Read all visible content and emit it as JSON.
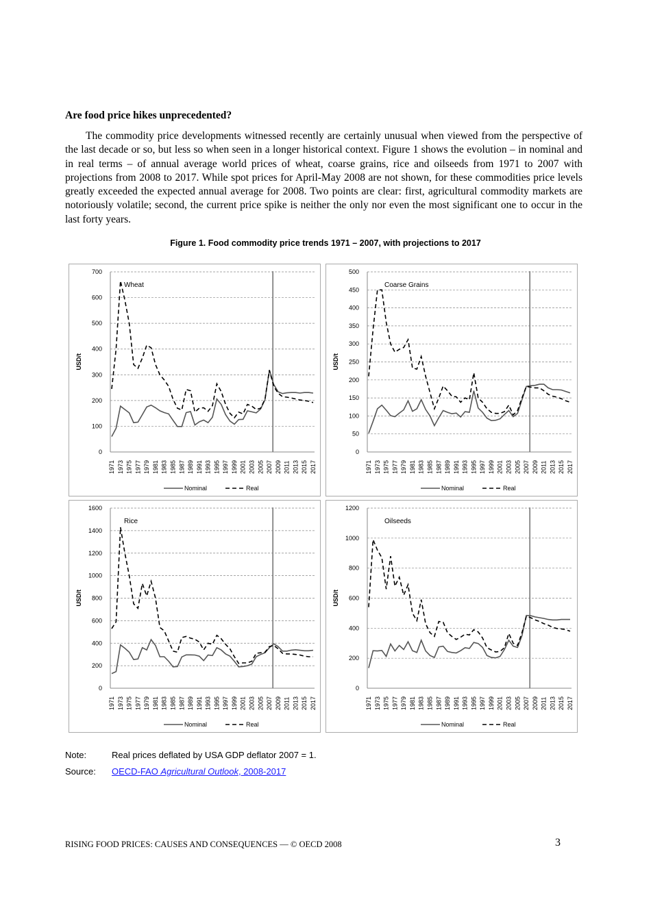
{
  "heading": "Are food price hikes unprecedented?",
  "paragraph": "The commodity price developments witnessed recently are certainly unusual when viewed from the perspective of the last decade or so, but less so when seen in a longer historical context. Figure 1 shows the evolution – in nominal and in real terms – of annual average world prices of wheat, coarse grains, rice and oilseeds from 1971 to 2007 with projections from 2008 to 2017. While spot prices for April-May 2008 are not shown, for these commodities price levels greatly exceeded the expected annual average for 2008. Two points are clear: first, agricultural commodity markets are notoriously volatile; second, the current price spike is neither the only nor even the most significant one to occur in the last forty years.",
  "figure_title": "Figure 1.  Food commodity price trends 1971 – 2007, with projections to 2017",
  "note": {
    "label": "Note:",
    "text": "Real prices deflated by USA GDP deflator 2007 = 1."
  },
  "source": {
    "label": "Source:",
    "link_prefix": "OECD-FAO ",
    "link_italic": "Agricultural Outlook",
    "link_suffix": ", 2008-2017"
  },
  "footer": "RISING FOOD PRICES: CAUSES AND CONSEQUENCES — © OECD 2008",
  "page_number": "3",
  "chart_data": [
    {
      "type": "line",
      "title": "Wheat",
      "ylabel": "USD/t",
      "ylim": [
        0,
        700
      ],
      "yticks": [
        0,
        100,
        200,
        300,
        400,
        500,
        600,
        700
      ],
      "x_start": 1971,
      "x_end": 2017,
      "projection_start": 2008,
      "grid": "horizontal dashed",
      "legend": "bottom",
      "series": [
        {
          "name": "Nominal",
          "style": "solid",
          "values": [
            60,
            92,
            178,
            165,
            152,
            114,
            116,
            145,
            175,
            182,
            172,
            160,
            153,
            148,
            123,
            99,
            99,
            153,
            157,
            105,
            117,
            124,
            114,
            135,
            206,
            185,
            145,
            120,
            108,
            126,
            127,
            160,
            156,
            152,
            167,
            203,
            318,
            262,
            234,
            227,
            230,
            231,
            231,
            229,
            231,
            231,
            229
          ]
        },
        {
          "name": "Real",
          "style": "dashed",
          "values": [
            245,
            400,
            665,
            590,
            500,
            340,
            325,
            365,
            415,
            405,
            340,
            300,
            280,
            255,
            205,
            170,
            163,
            243,
            238,
            155,
            170,
            172,
            158,
            180,
            265,
            235,
            185,
            150,
            133,
            155,
            148,
            185,
            178,
            165,
            170,
            205,
            318,
            255,
            228,
            215,
            213,
            210,
            206,
            202,
            200,
            197,
            192
          ]
        }
      ]
    },
    {
      "type": "line",
      "title": "Coarse Grains",
      "ylabel": "USD/t",
      "ylim": [
        0,
        500
      ],
      "yticks": [
        0,
        50,
        100,
        150,
        200,
        250,
        300,
        350,
        400,
        450,
        500
      ],
      "x_start": 1971,
      "x_end": 2017,
      "projection_start": 2008,
      "grid": "horizontal dashed",
      "legend": "bottom",
      "series": [
        {
          "name": "Nominal",
          "style": "solid",
          "values": [
            52,
            85,
            120,
            130,
            116,
            101,
            98,
            108,
            117,
            142,
            113,
            120,
            145,
            118,
            100,
            73,
            95,
            115,
            110,
            106,
            108,
            97,
            112,
            110,
            170,
            122,
            110,
            94,
            87,
            88,
            92,
            104,
            115,
            98,
            107,
            145,
            182,
            184,
            185,
            188,
            188,
            178,
            173,
            173,
            172,
            168,
            164
          ]
        },
        {
          "name": "Real",
          "style": "dashed",
          "values": [
            210,
            340,
            450,
            450,
            360,
            300,
            277,
            285,
            290,
            312,
            233,
            230,
            265,
            210,
            165,
            120,
            150,
            183,
            170,
            155,
            153,
            138,
            150,
            145,
            220,
            150,
            138,
            120,
            110,
            107,
            107,
            112,
            130,
            103,
            115,
            150,
            182,
            180,
            178,
            178,
            170,
            160,
            155,
            152,
            148,
            142,
            138
          ]
        }
      ]
    },
    {
      "type": "line",
      "title": "Rice",
      "ylabel": "USD/t",
      "ylim": [
        0,
        1600
      ],
      "yticks": [
        0,
        200,
        400,
        600,
        800,
        1000,
        1200,
        1400,
        1600
      ],
      "x_start": 1971,
      "x_end": 2017,
      "projection_start": 2008,
      "grid": "horizontal dashed",
      "legend": "bottom",
      "series": [
        {
          "name": "Nominal",
          "style": "solid",
          "values": [
            130,
            148,
            385,
            355,
            320,
            255,
            260,
            360,
            340,
            432,
            380,
            280,
            280,
            240,
            190,
            192,
            278,
            296,
            296,
            295,
            285,
            245,
            295,
            290,
            360,
            340,
            305,
            285,
            240,
            190,
            193,
            200,
            215,
            280,
            300,
            315,
            360,
            395,
            370,
            330,
            330,
            338,
            342,
            337,
            333,
            333,
            337
          ]
        },
        {
          "name": "Real",
          "style": "dashed",
          "values": [
            530,
            590,
            1430,
            1200,
            1000,
            750,
            710,
            930,
            820,
            950,
            800,
            540,
            510,
            420,
            330,
            320,
            450,
            460,
            445,
            435,
            410,
            340,
            400,
            390,
            470,
            440,
            390,
            350,
            280,
            220,
            225,
            225,
            240,
            310,
            315,
            320,
            370,
            380,
            350,
            310,
            305,
            305,
            300,
            295,
            285,
            280,
            280
          ]
        }
      ]
    },
    {
      "type": "line",
      "title": "Oilseeds",
      "ylabel": "USD/t",
      "ylim": [
        0,
        1200
      ],
      "yticks": [
        0,
        200,
        400,
        600,
        800,
        1000,
        1200
      ],
      "x_start": 1971,
      "x_end": 2017,
      "projection_start": 2008,
      "grid": "horizontal dashed",
      "legend": "bottom",
      "series": [
        {
          "name": "Nominal",
          "style": "solid",
          "values": [
            135,
            250,
            248,
            252,
            212,
            295,
            248,
            285,
            258,
            310,
            250,
            238,
            320,
            248,
            218,
            205,
            275,
            280,
            245,
            238,
            235,
            250,
            270,
            265,
            305,
            298,
            272,
            218,
            205,
            202,
            212,
            258,
            320,
            280,
            272,
            350,
            485,
            483,
            475,
            470,
            465,
            458,
            455,
            455,
            458,
            458,
            458
          ]
        },
        {
          "name": "Real",
          "style": "dashed",
          "values": [
            540,
            990,
            920,
            870,
            660,
            880,
            680,
            740,
            620,
            690,
            500,
            450,
            590,
            430,
            370,
            345,
            445,
            440,
            370,
            345,
            325,
            340,
            360,
            355,
            390,
            375,
            335,
            270,
            255,
            242,
            245,
            270,
            365,
            300,
            285,
            370,
            480,
            470,
            455,
            445,
            430,
            420,
            405,
            398,
            395,
            390,
            380
          ]
        }
      ]
    }
  ]
}
